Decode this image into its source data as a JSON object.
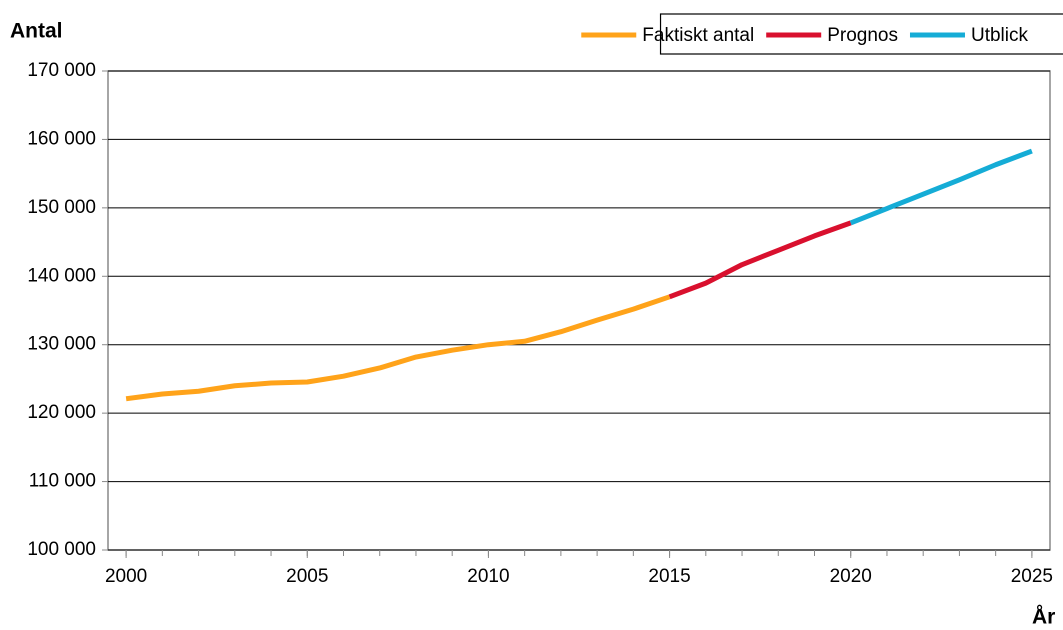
{
  "chart_data": {
    "type": "line",
    "y_label": "Antal",
    "x_label": "År",
    "x": [
      2000,
      2001,
      2002,
      2003,
      2004,
      2005,
      2006,
      2007,
      2008,
      2009,
      2010,
      2011,
      2012,
      2013,
      2014,
      2015,
      2016,
      2017,
      2018,
      2019,
      2020,
      2021,
      2022,
      2023,
      2024,
      2025
    ],
    "series": [
      {
        "name": "Faktiskt antal",
        "color": "#ffa31a",
        "values": [
          122100,
          122800,
          123200,
          124000,
          124400,
          124550,
          125400,
          126600,
          128200,
          129200,
          130000,
          130500,
          131900,
          133600,
          135200,
          137000,
          null,
          null,
          null,
          null,
          null,
          null,
          null,
          null,
          null,
          null
        ]
      },
      {
        "name": "Prognos",
        "color": "#d9102e",
        "values": [
          null,
          null,
          null,
          null,
          null,
          null,
          null,
          null,
          null,
          null,
          null,
          null,
          null,
          null,
          null,
          137000,
          139000,
          141700,
          143800,
          145900,
          147800,
          null,
          null,
          null,
          null,
          null
        ]
      },
      {
        "name": "Utblick",
        "color": "#15acd6",
        "values": [
          null,
          null,
          null,
          null,
          null,
          null,
          null,
          null,
          null,
          null,
          null,
          null,
          null,
          null,
          null,
          null,
          null,
          null,
          null,
          null,
          147800,
          149900,
          152000,
          154100,
          156300,
          158300
        ]
      }
    ],
    "xlim": [
      1999.5,
      2025.5
    ],
    "xticks": [
      2000,
      2005,
      2010,
      2015,
      2020,
      2025
    ],
    "ylim": [
      100000,
      170000
    ],
    "yticks": [
      {
        "value": 100000,
        "label": "100 000"
      },
      {
        "value": 110000,
        "label": "110 000"
      },
      {
        "value": 120000,
        "label": "120 000"
      },
      {
        "value": 130000,
        "label": "130 000"
      },
      {
        "value": 140000,
        "label": "140 000"
      },
      {
        "value": 150000,
        "label": "150 000"
      },
      {
        "value": 160000,
        "label": "160 000"
      },
      {
        "value": 170000,
        "label": "170 000"
      }
    ],
    "grid": true,
    "legend": "top-right"
  }
}
